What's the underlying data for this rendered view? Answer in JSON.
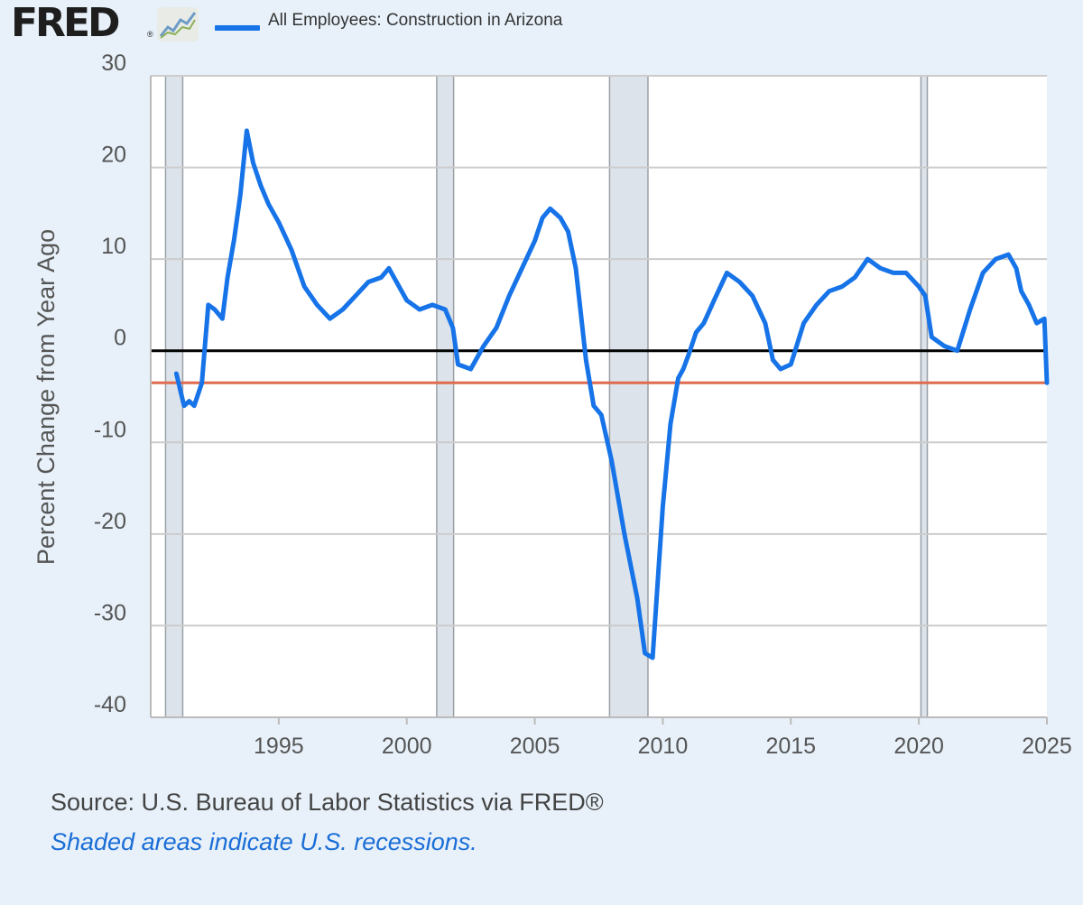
{
  "header": {
    "logo_text": "FRED",
    "logo_reg": "®",
    "logo_icon": "line-chart-icon",
    "legend_label": "All Employees: Construction in Arizona"
  },
  "footer": {
    "source": "Source: U.S. Bureau of Labor Statistics via FRED®",
    "note": "Shaded areas indicate U.S. recessions."
  },
  "colors": {
    "background": "#e8f1fa",
    "plot_background": "#ffffff",
    "series": "#1673e8",
    "zero_line": "#000000",
    "reference_line": "#e06a4e",
    "recession_shade": "#dde3ea",
    "grid": "#cccccc"
  },
  "chart_data": {
    "type": "line",
    "title": "",
    "xlabel": "",
    "ylabel": "Percent Change from Year Ago",
    "xlim": [
      1990.0,
      2025.0
    ],
    "ylim": [
      -40,
      30
    ],
    "yticks": [
      30,
      20,
      10,
      0,
      -10,
      -20,
      -30,
      -40
    ],
    "xticks": [
      1995,
      2000,
      2005,
      2010,
      2015,
      2020,
      2025
    ],
    "grid": true,
    "legend": "top",
    "recessions": [
      [
        1990.58,
        1991.25
      ],
      [
        2001.17,
        2001.83
      ],
      [
        2007.92,
        2009.42
      ],
      [
        2020.08,
        2020.33
      ]
    ],
    "reference_lines": [
      {
        "value": 0,
        "color": "#000000"
      },
      {
        "value": -3.5,
        "color": "#e06a4e"
      }
    ],
    "series": [
      {
        "name": "All Employees: Construction in Arizona",
        "x": [
          1991.0,
          1991.3,
          1991.5,
          1991.7,
          1992.0,
          1992.25,
          1992.5,
          1992.8,
          1993.0,
          1993.25,
          1993.5,
          1993.75,
          1994.0,
          1994.3,
          1994.6,
          1995.0,
          1995.5,
          1996.0,
          1996.5,
          1997.0,
          1997.5,
          1998.0,
          1998.5,
          1999.0,
          1999.3,
          1999.7,
          2000.0,
          2000.5,
          2001.0,
          2001.5,
          2001.8,
          2002.0,
          2002.5,
          2003.0,
          2003.5,
          2004.0,
          2004.5,
          2005.0,
          2005.3,
          2005.6,
          2006.0,
          2006.3,
          2006.6,
          2007.0,
          2007.3,
          2007.6,
          2008.0,
          2008.5,
          2009.0,
          2009.3,
          2009.6,
          2010.0,
          2010.3,
          2010.6,
          2010.8,
          2011.0,
          2011.3,
          2011.6,
          2012.0,
          2012.5,
          2013.0,
          2013.5,
          2014.0,
          2014.3,
          2014.6,
          2015.0,
          2015.5,
          2016.0,
          2016.5,
          2017.0,
          2017.5,
          2018.0,
          2018.5,
          2019.0,
          2019.5,
          2020.0,
          2020.25,
          2020.5,
          2021.0,
          2021.5,
          2022.0,
          2022.5,
          2023.0,
          2023.5,
          2023.8,
          2024.0,
          2024.3,
          2024.6,
          2024.9,
          2025.0
        ],
        "values": [
          -2.5,
          -6.0,
          -5.5,
          -6.0,
          -3.5,
          5.0,
          4.5,
          3.5,
          8.0,
          12.0,
          17.0,
          24.0,
          20.5,
          18.0,
          16.0,
          14.0,
          11.0,
          7.0,
          5.0,
          3.5,
          4.5,
          6.0,
          7.5,
          8.0,
          9.0,
          7.0,
          5.5,
          4.5,
          5.0,
          4.5,
          2.5,
          -1.5,
          -2.0,
          0.5,
          2.5,
          6.0,
          9.0,
          12.0,
          14.5,
          15.5,
          14.5,
          13.0,
          9.0,
          -1.0,
          -6.0,
          -7.0,
          -12.0,
          -20.0,
          -27.0,
          -33.0,
          -33.5,
          -17.0,
          -8.0,
          -3.0,
          -2.0,
          -0.5,
          2.0,
          3.0,
          5.5,
          8.5,
          7.5,
          6.0,
          3.0,
          -1.0,
          -2.0,
          -1.5,
          3.0,
          5.0,
          6.5,
          7.0,
          8.0,
          10.0,
          9.0,
          8.5,
          8.5,
          7.0,
          6.0,
          1.5,
          0.5,
          0.0,
          4.5,
          8.5,
          10.0,
          10.5,
          9.0,
          6.5,
          5.0,
          3.0,
          3.5,
          -3.5
        ]
      }
    ]
  }
}
